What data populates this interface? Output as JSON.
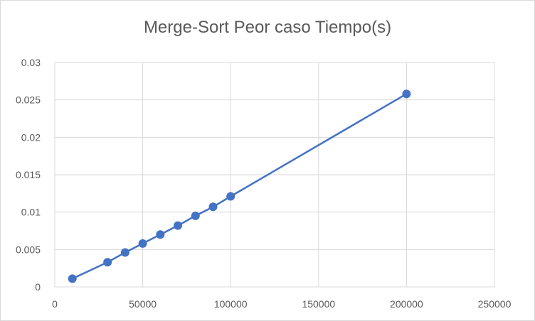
{
  "chart_data": {
    "type": "line",
    "title": "Merge-Sort Peor caso Tiempo(s)",
    "xlabel": "",
    "ylabel": "",
    "xlim": [
      0,
      250000
    ],
    "ylim": [
      0,
      0.03
    ],
    "x_ticks": [
      "0",
      "50000",
      "100000",
      "150000",
      "200000",
      "250000"
    ],
    "y_ticks": [
      "0",
      "0.005",
      "0.01",
      "0.015",
      "0.02",
      "0.025",
      "0.03"
    ],
    "grid": true,
    "legend": "none",
    "series": [
      {
        "color": "#4472c4",
        "marker": "circle",
        "x": [
          10000,
          30000,
          40000,
          50000,
          60000,
          70000,
          80000,
          90000,
          100000,
          200000
        ],
        "y": [
          0.0011,
          0.0033,
          0.0046,
          0.0058,
          0.007,
          0.0082,
          0.0095,
          0.0107,
          0.0121,
          0.0258
        ]
      }
    ]
  }
}
